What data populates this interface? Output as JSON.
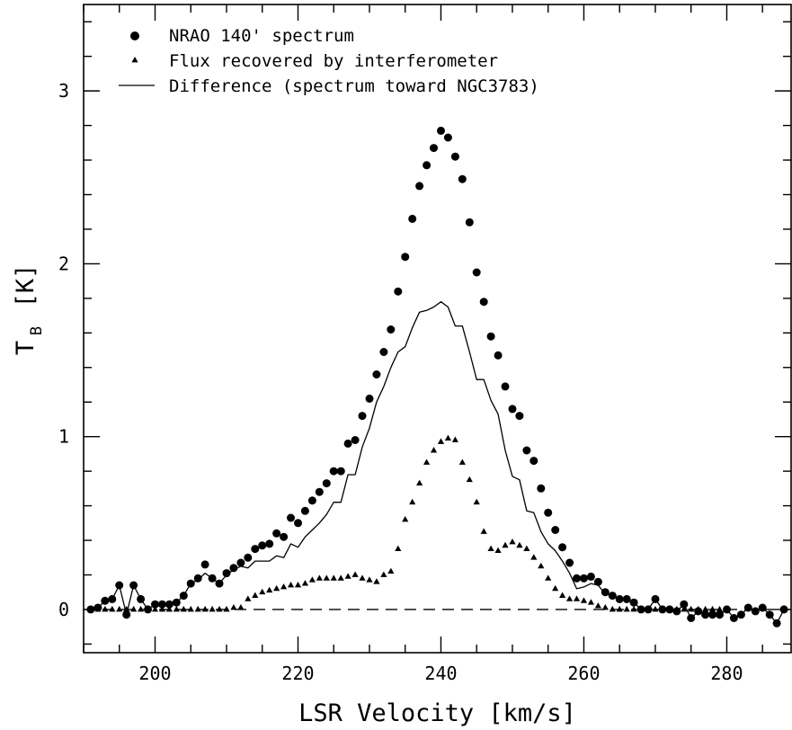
{
  "chart_data": {
    "type": "scatter",
    "xlabel": "LSR Velocity [km/s]",
    "ylabel_main": "T",
    "ylabel_sub": "B",
    "ylabel_unit": "[K]",
    "xlim": [
      190,
      289
    ],
    "ylim": [
      -0.25,
      3.5
    ],
    "xticks": [
      200,
      220,
      240,
      260,
      280
    ],
    "yticks": [
      0,
      1,
      2,
      3
    ],
    "x_minor_step": 5,
    "y_minor_step": 0.2,
    "legend_position": "top-left",
    "zero_reference_line": "dashed",
    "series": [
      {
        "name": "NRAO 140' spectrum",
        "marker": "filled-circle",
        "points": [
          [
            191,
            0.0
          ],
          [
            192,
            0.01
          ],
          [
            193,
            0.05
          ],
          [
            194,
            0.06
          ],
          [
            195,
            0.14
          ],
          [
            196,
            -0.03
          ],
          [
            197,
            0.14
          ],
          [
            198,
            0.06
          ],
          [
            199,
            0.0
          ],
          [
            200,
            0.03
          ],
          [
            201,
            0.03
          ],
          [
            202,
            0.03
          ],
          [
            203,
            0.04
          ],
          [
            204,
            0.08
          ],
          [
            205,
            0.15
          ],
          [
            206,
            0.18
          ],
          [
            207,
            0.26
          ],
          [
            208,
            0.18
          ],
          [
            209,
            0.15
          ],
          [
            210,
            0.21
          ],
          [
            211,
            0.24
          ],
          [
            212,
            0.27
          ],
          [
            213,
            0.3
          ],
          [
            214,
            0.35
          ],
          [
            215,
            0.37
          ],
          [
            216,
            0.38
          ],
          [
            217,
            0.44
          ],
          [
            218,
            0.42
          ],
          [
            219,
            0.53
          ],
          [
            220,
            0.5
          ],
          [
            221,
            0.57
          ],
          [
            222,
            0.63
          ],
          [
            223,
            0.68
          ],
          [
            224,
            0.73
          ],
          [
            225,
            0.8
          ],
          [
            226,
            0.8
          ],
          [
            227,
            0.96
          ],
          [
            228,
            0.98
          ],
          [
            229,
            1.12
          ],
          [
            230,
            1.22
          ],
          [
            231,
            1.36
          ],
          [
            232,
            1.49
          ],
          [
            233,
            1.62
          ],
          [
            234,
            1.84
          ],
          [
            235,
            2.04
          ],
          [
            236,
            2.26
          ],
          [
            237,
            2.45
          ],
          [
            238,
            2.57
          ],
          [
            239,
            2.67
          ],
          [
            240,
            2.77
          ],
          [
            241,
            2.73
          ],
          [
            242,
            2.62
          ],
          [
            243,
            2.49
          ],
          [
            244,
            2.24
          ],
          [
            245,
            1.95
          ],
          [
            246,
            1.78
          ],
          [
            247,
            1.58
          ],
          [
            248,
            1.47
          ],
          [
            249,
            1.29
          ],
          [
            250,
            1.16
          ],
          [
            251,
            1.12
          ],
          [
            252,
            0.92
          ],
          [
            253,
            0.86
          ],
          [
            254,
            0.7
          ],
          [
            255,
            0.56
          ],
          [
            256,
            0.46
          ],
          [
            257,
            0.36
          ],
          [
            258,
            0.27
          ],
          [
            259,
            0.18
          ],
          [
            260,
            0.18
          ],
          [
            261,
            0.19
          ],
          [
            262,
            0.16
          ],
          [
            263,
            0.1
          ],
          [
            264,
            0.08
          ],
          [
            265,
            0.06
          ],
          [
            266,
            0.06
          ],
          [
            267,
            0.04
          ],
          [
            268,
            0.0
          ],
          [
            269,
            0.0
          ],
          [
            270,
            0.06
          ],
          [
            271,
            0.0
          ],
          [
            272,
            0.0
          ],
          [
            273,
            -0.01
          ],
          [
            274,
            0.03
          ],
          [
            275,
            -0.05
          ],
          [
            276,
            -0.01
          ],
          [
            277,
            -0.03
          ],
          [
            278,
            -0.03
          ],
          [
            279,
            -0.03
          ],
          [
            280,
            0.0
          ],
          [
            281,
            -0.05
          ],
          [
            282,
            -0.03
          ],
          [
            283,
            0.01
          ],
          [
            284,
            -0.01
          ],
          [
            285,
            0.01
          ],
          [
            286,
            -0.03
          ],
          [
            287,
            -0.08
          ],
          [
            288,
            0.0
          ]
        ]
      },
      {
        "name": "Flux recovered by interferometer",
        "marker": "filled-triangle",
        "points": [
          [
            191,
            0.0
          ],
          [
            192,
            0.0
          ],
          [
            193,
            0.0
          ],
          [
            194,
            0.0
          ],
          [
            195,
            0.0
          ],
          [
            196,
            0.0
          ],
          [
            197,
            0.0
          ],
          [
            198,
            0.0
          ],
          [
            199,
            0.0
          ],
          [
            200,
            0.0
          ],
          [
            201,
            0.0
          ],
          [
            202,
            0.0
          ],
          [
            203,
            0.0
          ],
          [
            204,
            0.0
          ],
          [
            205,
            0.0
          ],
          [
            206,
            0.0
          ],
          [
            207,
            0.0
          ],
          [
            208,
            0.0
          ],
          [
            209,
            0.0
          ],
          [
            210,
            0.0
          ],
          [
            211,
            0.01
          ],
          [
            212,
            0.01
          ],
          [
            213,
            0.06
          ],
          [
            214,
            0.08
          ],
          [
            215,
            0.1
          ],
          [
            216,
            0.11
          ],
          [
            217,
            0.12
          ],
          [
            218,
            0.13
          ],
          [
            219,
            0.14
          ],
          [
            220,
            0.14
          ],
          [
            221,
            0.15
          ],
          [
            222,
            0.17
          ],
          [
            223,
            0.18
          ],
          [
            224,
            0.18
          ],
          [
            225,
            0.18
          ],
          [
            226,
            0.18
          ],
          [
            227,
            0.19
          ],
          [
            228,
            0.2
          ],
          [
            229,
            0.18
          ],
          [
            230,
            0.17
          ],
          [
            231,
            0.16
          ],
          [
            232,
            0.2
          ],
          [
            233,
            0.22
          ],
          [
            234,
            0.35
          ],
          [
            235,
            0.52
          ],
          [
            236,
            0.62
          ],
          [
            237,
            0.73
          ],
          [
            238,
            0.85
          ],
          [
            239,
            0.92
          ],
          [
            240,
            0.97
          ],
          [
            241,
            0.99
          ],
          [
            242,
            0.98
          ],
          [
            243,
            0.85
          ],
          [
            244,
            0.75
          ],
          [
            245,
            0.62
          ],
          [
            246,
            0.45
          ],
          [
            247,
            0.35
          ],
          [
            248,
            0.34
          ],
          [
            249,
            0.37
          ],
          [
            250,
            0.39
          ],
          [
            251,
            0.37
          ],
          [
            252,
            0.35
          ],
          [
            253,
            0.3
          ],
          [
            254,
            0.25
          ],
          [
            255,
            0.18
          ],
          [
            256,
            0.12
          ],
          [
            257,
            0.08
          ],
          [
            258,
            0.06
          ],
          [
            259,
            0.06
          ],
          [
            260,
            0.05
          ],
          [
            261,
            0.04
          ],
          [
            262,
            0.02
          ],
          [
            263,
            0.01
          ],
          [
            264,
            0.0
          ],
          [
            265,
            0.0
          ],
          [
            266,
            0.0
          ],
          [
            267,
            0.0
          ],
          [
            268,
            0.0
          ],
          [
            269,
            0.0
          ],
          [
            270,
            0.0
          ],
          [
            271,
            0.0
          ],
          [
            272,
            0.0
          ],
          [
            273,
            0.0
          ],
          [
            274,
            0.0
          ],
          [
            275,
            0.0
          ],
          [
            276,
            0.0
          ],
          [
            277,
            0.0
          ],
          [
            278,
            0.0
          ],
          [
            279,
            0.0
          ],
          [
            280,
            0.0
          ]
        ]
      },
      {
        "name": "Difference (spectrum toward NGC3783)",
        "marker": "solid-line",
        "points": [
          [
            191,
            0.0
          ],
          [
            192,
            0.01
          ],
          [
            193,
            0.05
          ],
          [
            194,
            0.06
          ],
          [
            195,
            0.14
          ],
          [
            196,
            -0.03
          ],
          [
            197,
            0.14
          ],
          [
            198,
            0.06
          ],
          [
            199,
            0.0
          ],
          [
            200,
            0.03
          ],
          [
            201,
            0.03
          ],
          [
            202,
            0.03
          ],
          [
            203,
            0.04
          ],
          [
            204,
            0.08
          ],
          [
            205,
            0.15
          ],
          [
            206,
            0.17
          ],
          [
            207,
            0.21
          ],
          [
            208,
            0.18
          ],
          [
            209,
            0.15
          ],
          [
            210,
            0.2
          ],
          [
            211,
            0.23
          ],
          [
            212,
            0.25
          ],
          [
            213,
            0.24
          ],
          [
            214,
            0.28
          ],
          [
            215,
            0.28
          ],
          [
            216,
            0.28
          ],
          [
            217,
            0.31
          ],
          [
            218,
            0.3
          ],
          [
            219,
            0.38
          ],
          [
            220,
            0.36
          ],
          [
            221,
            0.42
          ],
          [
            222,
            0.46
          ],
          [
            223,
            0.5
          ],
          [
            224,
            0.55
          ],
          [
            225,
            0.62
          ],
          [
            226,
            0.62
          ],
          [
            227,
            0.78
          ],
          [
            228,
            0.78
          ],
          [
            229,
            0.94
          ],
          [
            230,
            1.05
          ],
          [
            231,
            1.2
          ],
          [
            232,
            1.29
          ],
          [
            233,
            1.4
          ],
          [
            234,
            1.49
          ],
          [
            235,
            1.52
          ],
          [
            236,
            1.63
          ],
          [
            237,
            1.72
          ],
          [
            238,
            1.73
          ],
          [
            239,
            1.75
          ],
          [
            240,
            1.78
          ],
          [
            241,
            1.75
          ],
          [
            242,
            1.64
          ],
          [
            243,
            1.64
          ],
          [
            244,
            1.49
          ],
          [
            245,
            1.33
          ],
          [
            246,
            1.33
          ],
          [
            247,
            1.21
          ],
          [
            248,
            1.13
          ],
          [
            249,
            0.92
          ],
          [
            250,
            0.77
          ],
          [
            251,
            0.75
          ],
          [
            252,
            0.57
          ],
          [
            253,
            0.56
          ],
          [
            254,
            0.45
          ],
          [
            255,
            0.38
          ],
          [
            256,
            0.34
          ],
          [
            257,
            0.28
          ],
          [
            258,
            0.21
          ],
          [
            259,
            0.12
          ],
          [
            260,
            0.13
          ],
          [
            261,
            0.15
          ],
          [
            262,
            0.14
          ],
          [
            263,
            0.09
          ],
          [
            264,
            0.08
          ],
          [
            265,
            0.06
          ],
          [
            266,
            0.06
          ],
          [
            267,
            0.04
          ],
          [
            268,
            0.0
          ],
          [
            269,
            0.0
          ],
          [
            270,
            0.06
          ],
          [
            271,
            0.0
          ],
          [
            272,
            0.0
          ],
          [
            273,
            -0.01
          ],
          [
            274,
            0.03
          ],
          [
            275,
            -0.05
          ],
          [
            276,
            -0.01
          ],
          [
            277,
            -0.03
          ],
          [
            278,
            -0.03
          ],
          [
            279,
            -0.03
          ],
          [
            280,
            0.0
          ],
          [
            281,
            -0.05
          ],
          [
            282,
            -0.03
          ],
          [
            283,
            0.01
          ],
          [
            284,
            -0.01
          ],
          [
            285,
            0.01
          ],
          [
            286,
            -0.03
          ],
          [
            287,
            -0.08
          ],
          [
            288,
            0.0
          ]
        ]
      }
    ]
  }
}
